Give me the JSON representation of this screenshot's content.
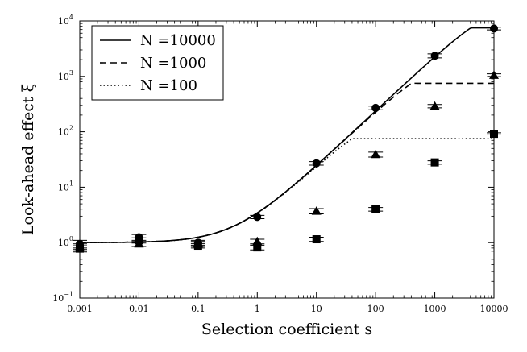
{
  "chart_data": {
    "type": "line",
    "xlabel": "Selection coefficient s",
    "ylabel": "Look-ahead effect ξ",
    "x_scale": "log",
    "y_scale": "log",
    "xlim": [
      0.001,
      10000
    ],
    "ylim": [
      0.1,
      10000
    ],
    "x_ticks": [
      {
        "value": 0.001,
        "label": "0.001"
      },
      {
        "value": 0.01,
        "label": "0.01"
      },
      {
        "value": 0.1,
        "label": "0.1"
      },
      {
        "value": 1,
        "label": "1"
      },
      {
        "value": 10,
        "label": "10"
      },
      {
        "value": 100,
        "label": "100"
      },
      {
        "value": 1000,
        "label": "1000"
      },
      {
        "value": 10000,
        "label": "10000"
      }
    ],
    "y_ticks": [
      {
        "value": 0.1,
        "base": "10",
        "exp": "−1"
      },
      {
        "value": 1,
        "base": "10",
        "exp": "0"
      },
      {
        "value": 10,
        "base": "10",
        "exp": "1"
      },
      {
        "value": 100,
        "base": "10",
        "exp": "2"
      },
      {
        "value": 1000,
        "base": "10",
        "exp": "3"
      },
      {
        "value": 10000,
        "base": "10",
        "exp": "4"
      }
    ],
    "legend_position": "top-left",
    "series": [
      {
        "name": "N =10000",
        "N": 10000,
        "line_style": "solid",
        "marker": "circle",
        "points": [
          {
            "x": 0.001,
            "y": 0.95,
            "err_low": 0.8,
            "err_high": 1.1
          },
          {
            "x": 0.01,
            "y": 1.25,
            "err_low": 1.1,
            "err_high": 1.4
          },
          {
            "x": 0.1,
            "y": 1.0,
            "err_low": 0.9,
            "err_high": 1.1
          },
          {
            "x": 1,
            "y": 2.9,
            "err_low": 2.7,
            "err_high": 3.1
          },
          {
            "x": 10,
            "y": 27,
            "err_low": 25,
            "err_high": 29
          },
          {
            "x": 100,
            "y": 270,
            "err_low": 250,
            "err_high": 290
          },
          {
            "x": 1000,
            "y": 2350,
            "err_low": 2150,
            "err_high": 2550
          },
          {
            "x": 10000,
            "y": 7300,
            "err_low": 6900,
            "err_high": 7700
          }
        ]
      },
      {
        "name": "N =1000",
        "N": 1000,
        "line_style": "dashed",
        "marker": "triangle",
        "points": [
          {
            "x": 0.001,
            "y": 0.85,
            "err_low": 0.75,
            "err_high": 0.95
          },
          {
            "x": 0.01,
            "y": 0.95,
            "err_low": 0.85,
            "err_high": 1.05
          },
          {
            "x": 0.1,
            "y": 0.95,
            "err_low": 0.85,
            "err_high": 1.05
          },
          {
            "x": 1,
            "y": 1.05,
            "err_low": 0.95,
            "err_high": 1.15
          },
          {
            "x": 10,
            "y": 3.7,
            "err_low": 3.3,
            "err_high": 4.1
          },
          {
            "x": 100,
            "y": 39,
            "err_low": 35,
            "err_high": 43
          },
          {
            "x": 1000,
            "y": 290,
            "err_low": 270,
            "err_high": 310
          },
          {
            "x": 10000,
            "y": 1050,
            "err_low": 990,
            "err_high": 1110
          }
        ]
      },
      {
        "name": "N =100",
        "N": 100,
        "line_style": "dotted",
        "marker": "square",
        "points": [
          {
            "x": 0.001,
            "y": 0.78,
            "err_low": 0.68,
            "err_high": 0.88
          },
          {
            "x": 0.01,
            "y": 1.1,
            "err_low": 0.98,
            "err_high": 1.22
          },
          {
            "x": 0.1,
            "y": 0.88,
            "err_low": 0.8,
            "err_high": 0.96
          },
          {
            "x": 1,
            "y": 0.82,
            "err_low": 0.74,
            "err_high": 0.9
          },
          {
            "x": 10,
            "y": 1.15,
            "err_low": 1.05,
            "err_high": 1.25
          },
          {
            "x": 100,
            "y": 4.0,
            "err_low": 3.7,
            "err_high": 4.3
          },
          {
            "x": 1000,
            "y": 28,
            "err_low": 26,
            "err_high": 30
          },
          {
            "x": 10000,
            "y": 92,
            "err_low": 88,
            "err_high": 96
          }
        ]
      }
    ]
  }
}
